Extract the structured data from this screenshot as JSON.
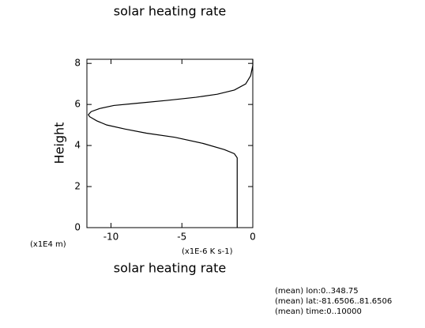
{
  "chart_data": {
    "type": "line",
    "title": "solar heating rate",
    "xlabel": "solar heating rate",
    "ylabel": "Height",
    "y_unit": "(x1E4 m)",
    "x_unit": "(x1E-6 K s-1)",
    "notes": [
      "(mean) lon:0..348.75",
      "(mean) lat:-81.6506..81.6506",
      "(mean) time:0..10000"
    ],
    "x": [
      -1.1,
      -1.1,
      -1.1,
      -1.3,
      -2,
      -3.5,
      -5.5,
      -7.5,
      -9,
      -10.3,
      -11,
      -11.5,
      -11.6,
      -11.4,
      -10.8,
      -9.8,
      -8.3,
      -6,
      -4,
      -2.5,
      -1.3,
      -0.5,
      -0.15,
      0,
      0
    ],
    "y": [
      0,
      2,
      3.4,
      3.6,
      3.8,
      4.1,
      4.4,
      4.6,
      4.8,
      5.0,
      5.2,
      5.4,
      5.5,
      5.65,
      5.8,
      5.95,
      6.05,
      6.2,
      6.35,
      6.5,
      6.7,
      7.0,
      7.4,
      7.9,
      8.2
    ],
    "color": "#000000",
    "xlim": [
      -11.7,
      0
    ],
    "xticks": [
      -10,
      -5,
      0
    ],
    "ylim": [
      0,
      8.2
    ],
    "yticks": [
      0,
      2,
      4,
      6,
      8
    ],
    "grid": false
  }
}
